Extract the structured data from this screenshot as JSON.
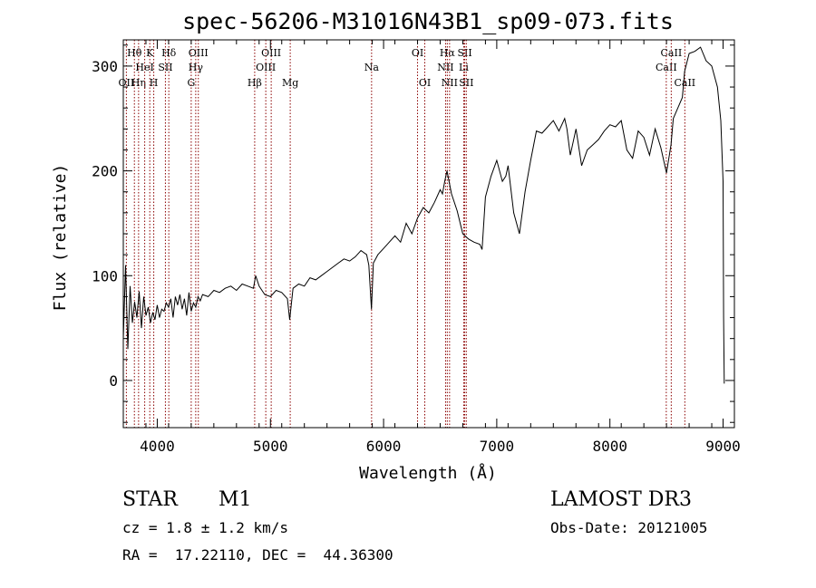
{
  "chart_data": {
    "type": "line",
    "title": "spec-56206-M31016N43B1_sp09-073.fits",
    "xlabel": "Wavelength (Å)",
    "ylabel": "Flux (relative)",
    "xlim": [
      3700,
      9100
    ],
    "ylim": [
      -45,
      325
    ],
    "xticks": [
      4000,
      5000,
      6000,
      7000,
      8000,
      9000
    ],
    "yticks": [
      0,
      100,
      200,
      300
    ],
    "grid": false,
    "line_color": "#8b0000",
    "series": [
      {
        "name": "flux",
        "color": "#000000",
        "x": [
          3700,
          3720,
          3740,
          3760,
          3780,
          3800,
          3820,
          3840,
          3860,
          3880,
          3900,
          3920,
          3940,
          3960,
          3980,
          4000,
          4020,
          4040,
          4060,
          4080,
          4100,
          4120,
          4140,
          4160,
          4180,
          4200,
          4220,
          4240,
          4260,
          4280,
          4300,
          4320,
          4340,
          4360,
          4380,
          4400,
          4450,
          4500,
          4550,
          4600,
          4650,
          4700,
          4750,
          4800,
          4850,
          4870,
          4900,
          4950,
          5000,
          5050,
          5100,
          5150,
          5170,
          5200,
          5250,
          5300,
          5350,
          5400,
          5450,
          5500,
          5550,
          5600,
          5650,
          5700,
          5750,
          5800,
          5850,
          5870,
          5893,
          5910,
          5950,
          6000,
          6050,
          6100,
          6150,
          6200,
          6250,
          6300,
          6350,
          6400,
          6450,
          6500,
          6520,
          6540,
          6560,
          6600,
          6650,
          6700,
          6750,
          6800,
          6850,
          6870,
          6900,
          6950,
          7000,
          7050,
          7080,
          7100,
          7150,
          7200,
          7250,
          7300,
          7350,
          7400,
          7450,
          7500,
          7550,
          7600,
          7620,
          7650,
          7700,
          7750,
          7800,
          7850,
          7900,
          7950,
          8000,
          8050,
          8100,
          8150,
          8200,
          8250,
          8300,
          8350,
          8400,
          8450,
          8500,
          8540,
          8560,
          8600,
          8640,
          8660,
          8700,
          8750,
          8800,
          8850,
          8900,
          8950,
          8980,
          9000,
          9005,
          9010
        ],
        "y": [
          40,
          110,
          30,
          90,
          55,
          75,
          60,
          85,
          50,
          80,
          62,
          70,
          55,
          65,
          58,
          72,
          60,
          68,
          66,
          74,
          70,
          78,
          60,
          80,
          72,
          82,
          68,
          78,
          62,
          84,
          66,
          74,
          70,
          80,
          76,
          82,
          80,
          86,
          84,
          88,
          90,
          86,
          92,
          90,
          88,
          100,
          90,
          82,
          80,
          86,
          84,
          78,
          58,
          88,
          92,
          90,
          98,
          96,
          100,
          104,
          108,
          112,
          116,
          114,
          118,
          124,
          120,
          110,
          68,
          112,
          120,
          126,
          132,
          138,
          132,
          150,
          140,
          155,
          165,
          160,
          170,
          182,
          178,
          190,
          200,
          178,
          162,
          140,
          135,
          132,
          130,
          125,
          175,
          195,
          210,
          190,
          195,
          205,
          160,
          140,
          180,
          210,
          238,
          236,
          242,
          248,
          238,
          250,
          240,
          215,
          240,
          205,
          220,
          225,
          230,
          238,
          244,
          242,
          248,
          220,
          212,
          238,
          232,
          215,
          240,
          222,
          198,
          225,
          250,
          260,
          270,
          295,
          312,
          314,
          318,
          305,
          300,
          280,
          248,
          190,
          60,
          -3
        ]
      }
    ],
    "lines": [
      {
        "name": "OII",
        "wave": 3727,
        "row": 3
      },
      {
        "name": "Hθ",
        "wave": 3798,
        "row": 1
      },
      {
        "name": "Hη",
        "wave": 3835,
        "row": 3
      },
      {
        "name": "HeI",
        "wave": 3889,
        "row": 2
      },
      {
        "name": "K",
        "wave": 3934,
        "row": 1
      },
      {
        "name": "H",
        "wave": 3969,
        "row": 3
      },
      {
        "name": "SII",
        "wave": 4072,
        "row": 2
      },
      {
        "name": "Hδ",
        "wave": 4102,
        "row": 1
      },
      {
        "name": "G",
        "wave": 4300,
        "row": 3
      },
      {
        "name": "Hγ",
        "wave": 4340,
        "row": 2
      },
      {
        "name": "OIII",
        "wave": 4363,
        "row": 1
      },
      {
        "name": "Hβ",
        "wave": 4861,
        "row": 3
      },
      {
        "name": "OIII",
        "wave": 4959,
        "row": 2
      },
      {
        "name": "OIII",
        "wave": 5007,
        "row": 1
      },
      {
        "name": "Mg",
        "wave": 5175,
        "row": 3
      },
      {
        "name": "Na",
        "wave": 5894,
        "row": 2
      },
      {
        "name": "OI",
        "wave": 6300,
        "row": 1
      },
      {
        "name": "OI",
        "wave": 6364,
        "row": 3
      },
      {
        "name": "NII",
        "wave": 6548,
        "row": 2
      },
      {
        "name": "Hα",
        "wave": 6563,
        "row": 1
      },
      {
        "name": "NII",
        "wave": 6583,
        "row": 3
      },
      {
        "name": "SII",
        "wave": 6717,
        "row": 1
      },
      {
        "name": "Li",
        "wave": 6708,
        "row": 2
      },
      {
        "name": "SII",
        "wave": 6731,
        "row": 3
      },
      {
        "name": "CaII",
        "wave": 8498,
        "row": 2
      },
      {
        "name": "CaII",
        "wave": 8542,
        "row": 1
      },
      {
        "name": "CaII",
        "wave": 8662,
        "row": 3
      }
    ]
  },
  "info": {
    "object_type": "STAR",
    "subclass": "M1",
    "survey": "LAMOST DR3",
    "cz": "cz = 1.8 ± 1.2 km/s",
    "obs_date": "Obs-Date: 20121005",
    "coords": "RA =  17.22110, DEC =  44.36300"
  }
}
